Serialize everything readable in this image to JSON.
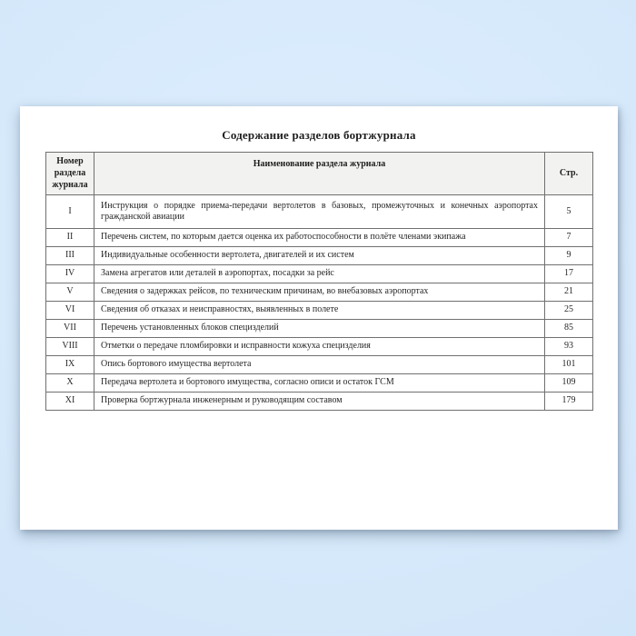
{
  "document": {
    "title": "Содержание разделов бортжурнала",
    "table": {
      "headers": {
        "number": "Номер раздела журнала",
        "name": "Наименование раздела журнала",
        "page": "Стр."
      },
      "rows": [
        {
          "num": "I",
          "name": "Инструкция о порядке приема-передачи вертолетов в базовых, промежуточных и конечных аэропортах гражданской авиации",
          "page": "5"
        },
        {
          "num": "II",
          "name": "Перечень систем, по которым дается оценка их работоспособности в полёте членами экипажа",
          "page": "7"
        },
        {
          "num": "III",
          "name": "Индивидуальные особенности вертолета, двигателей и их систем",
          "page": "9"
        },
        {
          "num": "IV",
          "name": "Замена агрегатов или деталей в аэропортах, посадки за рейс",
          "page": "17"
        },
        {
          "num": "V",
          "name": "Сведения о задержках рейсов, по техническим причинам, во внебазовых аэропортах",
          "page": "21"
        },
        {
          "num": "VI",
          "name": "Сведения об отказах и неисправностях, выявленных в полете",
          "page": "25"
        },
        {
          "num": "VII",
          "name": "Перечень установленных блоков специзделий",
          "page": "85"
        },
        {
          "num": "VIII",
          "name": "Отметки о передаче пломбировки и исправности кожуха специзделия",
          "page": "93"
        },
        {
          "num": "IX",
          "name": "Опись бортового имущества вертолета",
          "page": "101"
        },
        {
          "num": "X",
          "name": "Передача вертолета и бортового имущества, согласно описи и остаток ГСМ",
          "page": "109"
        },
        {
          "num": "XI",
          "name": "Проверка бортжурнала инженерным и руководящим составом",
          "page": "179"
        }
      ]
    }
  },
  "colors": {
    "background_blue": "#d6e9fb",
    "page_white": "#ffffff",
    "table_border": "#707070",
    "header_fill": "#f2f2f0",
    "text": "#262626"
  }
}
